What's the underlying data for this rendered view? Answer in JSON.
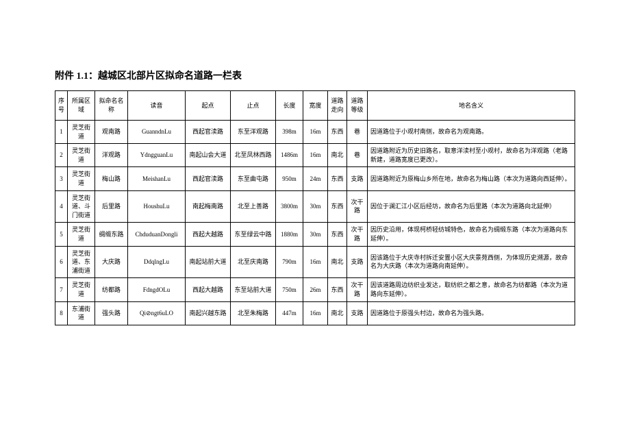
{
  "title": "附件 1.1：越城区北部片区拟命名道路一栏表",
  "columns": [
    "序号",
    "所属区域",
    "拟命名名称",
    "读音",
    "起点",
    "止点",
    "长度",
    "宽度",
    "道路走向",
    "道路等级",
    "地名含义"
  ],
  "rows": [
    {
      "seq": "1",
      "area": "灵芝街道",
      "name": "观南路",
      "read": "GuanndnLu",
      "start": "西起官渎路",
      "end": "东至洋观路",
      "len": "398m",
      "wid": "16m",
      "dir": "东西",
      "lvl": "巷",
      "mean": "因道路位于小观村南侧，故命名为观南路。"
    },
    {
      "seq": "2",
      "area": "灵芝街道",
      "name": "洋观路",
      "read": "YdngguanLu",
      "start": "南起山会大道",
      "end": "北至凤林西路",
      "len": "1486m",
      "wid": "16m",
      "dir": "南北",
      "lvl": "巷",
      "mean": "因道路附近为历史旧路名，取意洋渎村至小观村，故命名为洋观路（老路新建，道路宽度已更改）。"
    },
    {
      "seq": "3",
      "area": "灵芝街道",
      "name": "梅山路",
      "read": "MeishanLu",
      "start": "西起官渎路",
      "end": "东至曲屯路",
      "len": "950m",
      "wid": "24m",
      "dir": "东西",
      "lvl": "支路",
      "mean": "因道路附近为原梅山乡所在地，故命名为梅山路（本次为道路向西延伸）。"
    },
    {
      "seq": "4",
      "area": "灵芝街道、斗门街道",
      "name": "后里路",
      "read": "HoushuLu",
      "start": "南起梅南路",
      "end": "北至上善路",
      "len": "3800m",
      "wid": "30m",
      "dir": "东西",
      "lvl": "次干路",
      "mean": "因位于澜汇江小区后经坊，故命名为后里路（本次为道路向北延伸）"
    },
    {
      "seq": "5",
      "area": "灵芝街道",
      "name": "绸缎东路",
      "read": "ChduduanDongli",
      "start": "西起大越路",
      "end": "东至绿云中路",
      "len": "1880m",
      "wid": "30m",
      "dir": "东西",
      "lvl": "次干路",
      "mean": "因历史沿用，体现柯桥轻纺城特色，故命名为绸缎东路（本次为道路向东延伸）。"
    },
    {
      "seq": "6",
      "area": "灵芝街道、东浦街道",
      "name": "大庆路",
      "read": "DdqlngLu",
      "start": "南起站前大道",
      "end": "北至庆南路",
      "len": "790m",
      "wid": "16m",
      "dir": "南北",
      "lvl": "支路",
      "mean": "因该路位于大庆寺村拆迁安置小区大庆景苑西侧，为体现历史溯源，故命名为大庆路（本次为道路向南延伸）。"
    },
    {
      "seq": "7",
      "area": "灵芝街道",
      "name": "纺都路",
      "read": "FdngdOLu",
      "start": "西起大越路",
      "end": "东至站前大道",
      "len": "750m",
      "wid": "26m",
      "dir": "东西",
      "lvl": "次干路",
      "mean": "因该道路周边纺织业发达，取纺织之都之意，故命名为纺都路（本次为道路向东延伸）。"
    },
    {
      "seq": "8",
      "area": "东浦街道",
      "name": "强头路",
      "read": "Qi⊘ngt6uLO",
      "start": "南起兴越东路",
      "end": "北至朱梅路",
      "len": "447m",
      "wid": "16m",
      "dir": "南北",
      "lvl": "支路",
      "mean": "因道路位于原强头村边，故命名为强头路。"
    }
  ]
}
